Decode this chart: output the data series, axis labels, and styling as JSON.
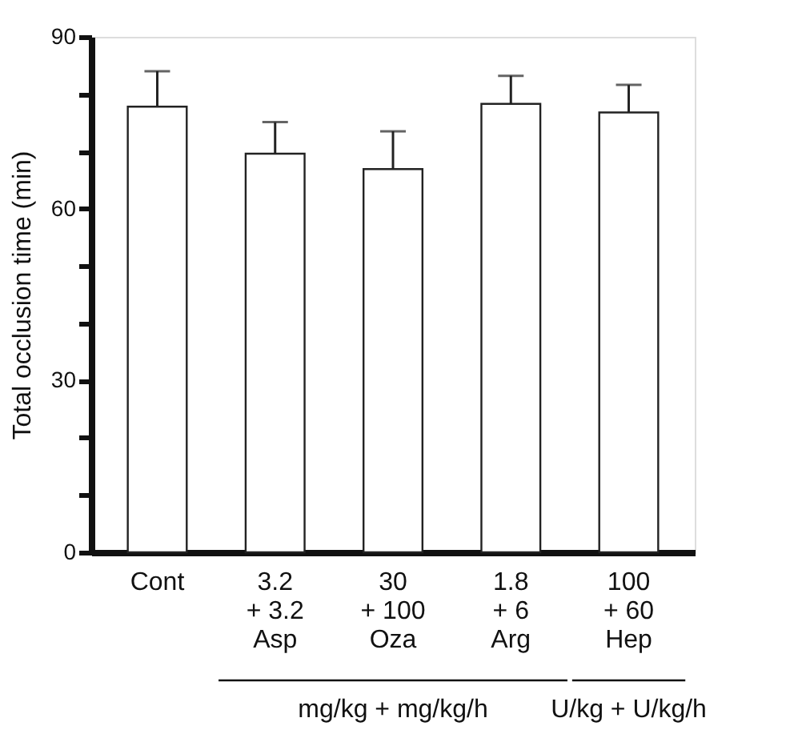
{
  "chart_data": {
    "type": "bar",
    "ylabel": "Total occlusion time (min)",
    "categories": [
      "Cont",
      "3.2\n+ 3.2\nAsp",
      "30\n+ 100\nOza",
      "1.8\n+ 6\nArg",
      "100\n+ 60\nHep"
    ],
    "values": [
      77.8,
      69.6,
      66.9,
      78.3,
      76.8
    ],
    "errors": [
      [
        77.8,
        84.0
      ],
      [
        69.6,
        75.1
      ],
      [
        66.9,
        73.5
      ],
      [
        78.3,
        83.2
      ],
      [
        76.8,
        81.6
      ]
    ],
    "color": "#ffffff",
    "ylim": [
      0,
      90
    ],
    "yticks": [
      0,
      {
        "value": 10,
        "label": null
      },
      {
        "value": 20,
        "label": null
      },
      30,
      {
        "value": 40,
        "label": null
      },
      {
        "value": 50,
        "label": null
      },
      60,
      {
        "value": 70,
        "label": null
      },
      {
        "value": 80,
        "label": null
      },
      90
    ],
    "grid": false,
    "annotations": [
      "mg/kg + mg/kg/h",
      "U/kg + U/kg/h"
    ]
  }
}
